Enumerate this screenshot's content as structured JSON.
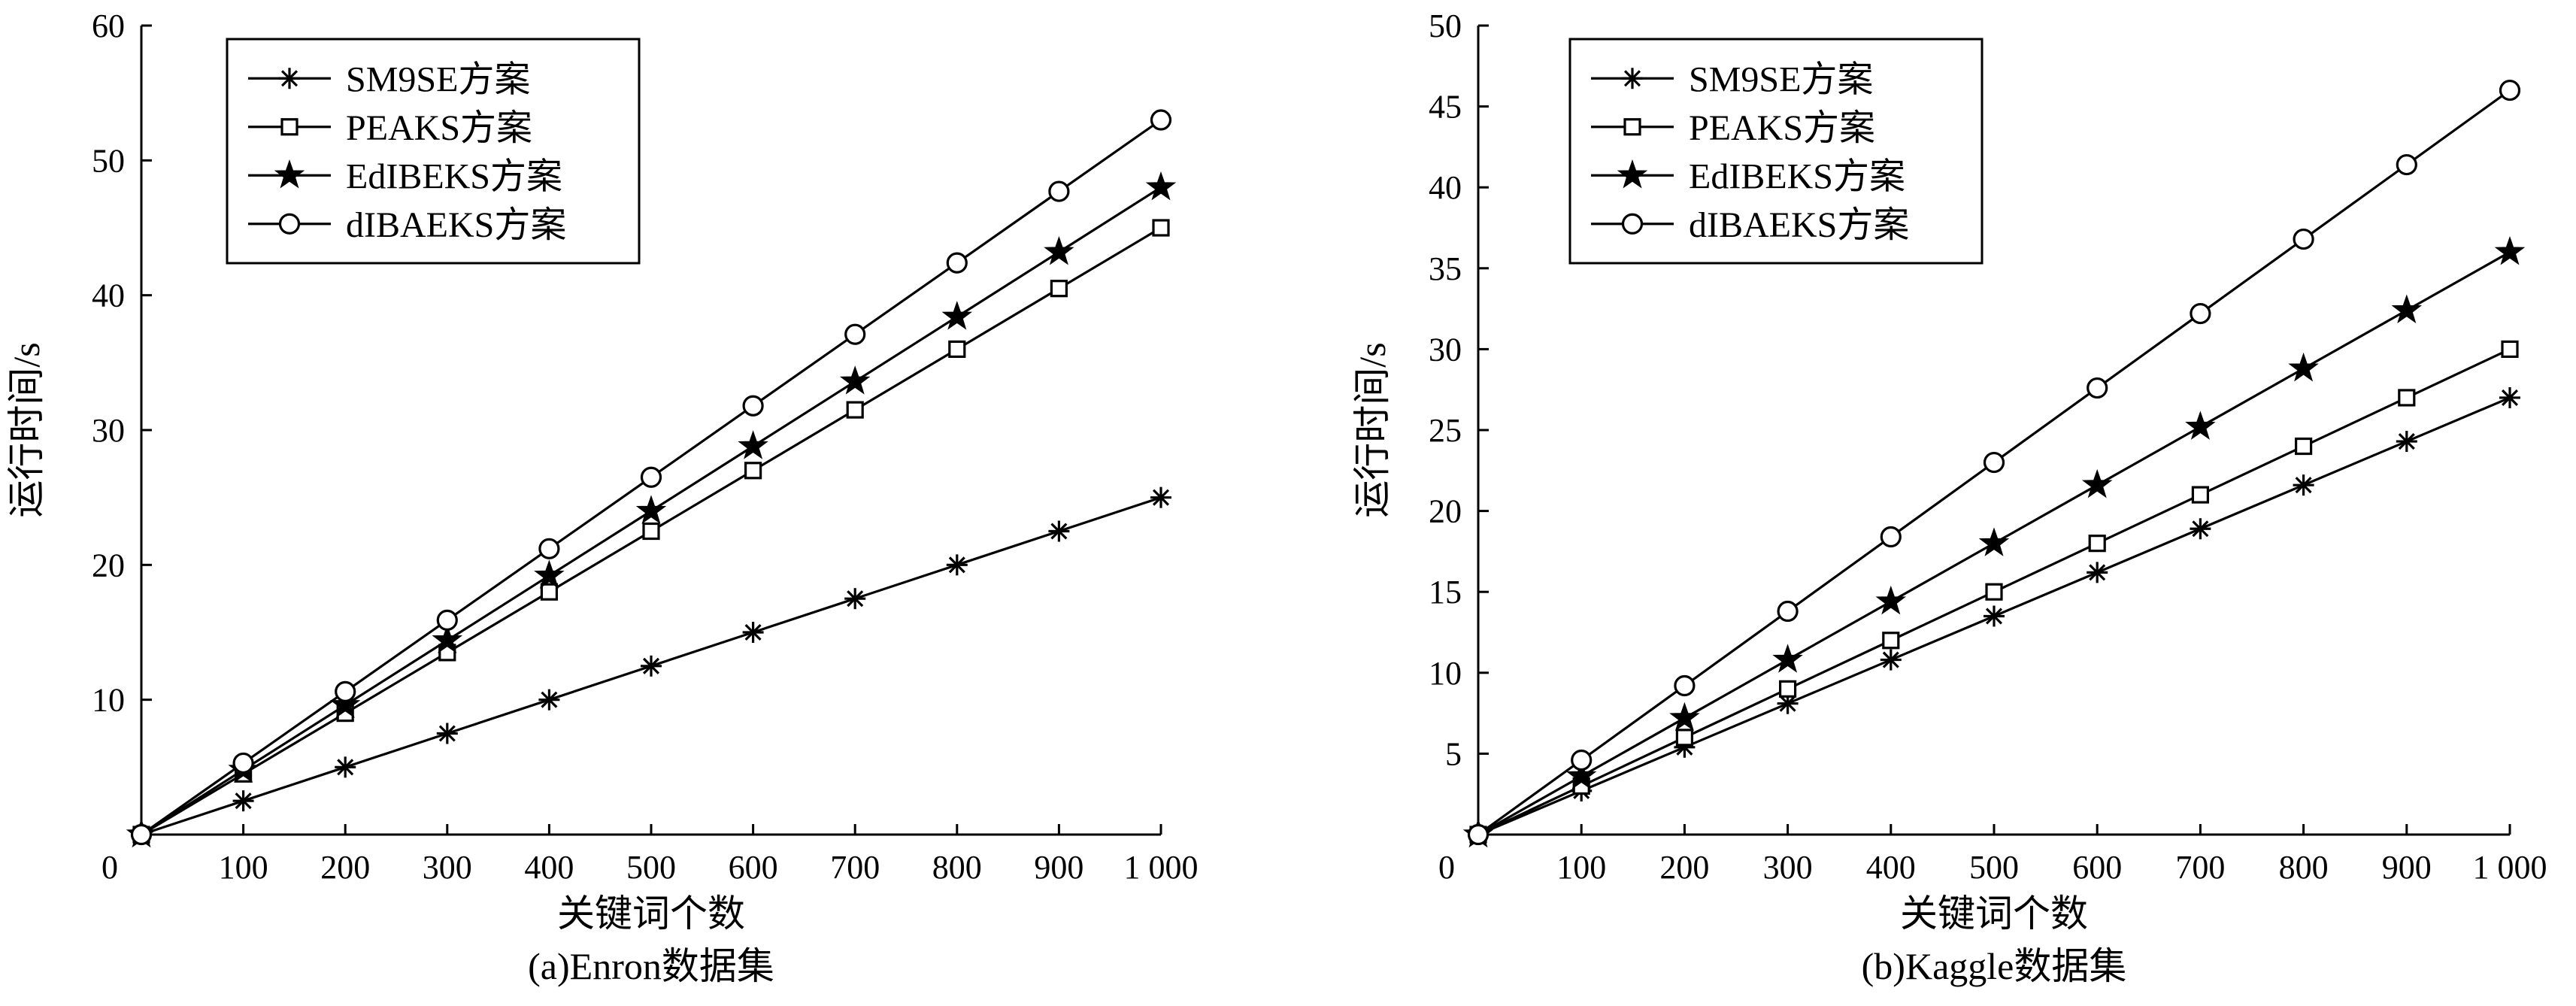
{
  "chart_data": [
    {
      "type": "line",
      "title": "",
      "caption": "(a)Enron数据集",
      "xlabel": "关键词个数",
      "ylabel": "运行时间/s",
      "x": [
        0,
        100,
        200,
        300,
        400,
        500,
        600,
        700,
        800,
        900,
        1000
      ],
      "xticks": [
        "0",
        "100",
        "200",
        "300",
        "400",
        "500",
        "600",
        "700",
        "800",
        "900",
        "1 000"
      ],
      "xlim": [
        0,
        1000
      ],
      "ylim": [
        0,
        60
      ],
      "yticks": [
        0,
        10,
        20,
        30,
        40,
        50,
        60
      ],
      "grid": false,
      "legend_position": "top-left",
      "series": [
        {
          "name": "SM9SE方案",
          "marker": "asterisk",
          "values": [
            0,
            2.5,
            5,
            7.5,
            10,
            12.5,
            15,
            17.5,
            20,
            22.5,
            25
          ]
        },
        {
          "name": "PEAKS方案",
          "marker": "square",
          "values": [
            0,
            4.5,
            9,
            13.5,
            18,
            22.5,
            27,
            31.5,
            36,
            40.5,
            45
          ]
        },
        {
          "name": "EdIBEKS方案",
          "marker": "star",
          "values": [
            0,
            4.8,
            9.6,
            14.4,
            19.2,
            24,
            28.8,
            33.6,
            38.4,
            43.2,
            48
          ]
        },
        {
          "name": "dIBAEKS方案",
          "marker": "circle",
          "values": [
            0,
            5.3,
            10.6,
            15.9,
            21.2,
            26.5,
            31.8,
            37.1,
            42.4,
            47.7,
            53
          ]
        }
      ]
    },
    {
      "type": "line",
      "title": "",
      "caption": "(b)Kaggle数据集",
      "xlabel": "关键词个数",
      "ylabel": "运行时间/s",
      "x": [
        0,
        100,
        200,
        300,
        400,
        500,
        600,
        700,
        800,
        900,
        1000
      ],
      "xticks": [
        "0",
        "100",
        "200",
        "300",
        "400",
        "500",
        "600",
        "700",
        "800",
        "900",
        "1 000"
      ],
      "xlim": [
        0,
        1000
      ],
      "ylim": [
        0,
        50
      ],
      "yticks": [
        0,
        5,
        10,
        15,
        20,
        25,
        30,
        35,
        40,
        45,
        50
      ],
      "grid": false,
      "legend_position": "top-left",
      "series": [
        {
          "name": "SM9SE方案",
          "marker": "asterisk",
          "values": [
            0,
            2.7,
            5.4,
            8.1,
            10.8,
            13.5,
            16.2,
            18.9,
            21.6,
            24.3,
            27
          ]
        },
        {
          "name": "PEAKS方案",
          "marker": "square",
          "values": [
            0,
            3,
            6,
            9,
            12,
            15,
            18,
            21,
            24,
            27,
            30
          ]
        },
        {
          "name": "EdIBEKS方案",
          "marker": "star",
          "values": [
            0,
            3.6,
            7.2,
            10.8,
            14.4,
            18,
            21.6,
            25.2,
            28.8,
            32.4,
            36
          ]
        },
        {
          "name": "dIBAEKS方案",
          "marker": "circle",
          "values": [
            0,
            4.6,
            9.2,
            13.8,
            18.4,
            23,
            27.6,
            32.2,
            36.8,
            41.4,
            46
          ]
        }
      ]
    }
  ]
}
